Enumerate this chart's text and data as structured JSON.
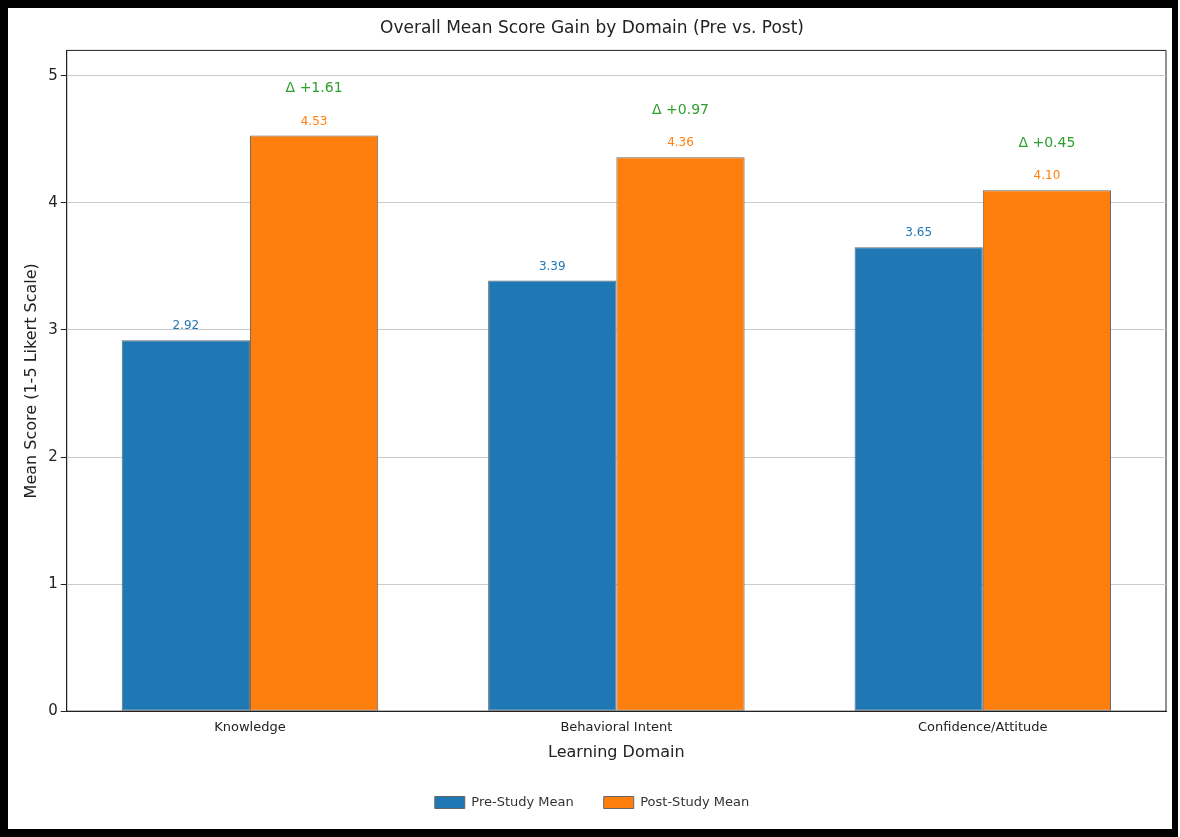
{
  "chart_data": {
    "type": "bar",
    "title": "Overall Mean Score Gain by Domain (Pre vs. Post)",
    "xlabel": "Learning Domain",
    "ylabel": "Mean Score (1-5 Likert Scale)",
    "categories": [
      "Knowledge",
      "Behavioral Intent",
      "Confidence/Attitude"
    ],
    "series": [
      {
        "name": "Pre-Study Mean",
        "color": "#1f77b4",
        "values": [
          2.92,
          3.39,
          3.65
        ],
        "value_labels": [
          "2.92",
          "3.39",
          "3.65"
        ]
      },
      {
        "name": "Post-Study Mean",
        "color": "#ff7f0e",
        "values": [
          4.53,
          4.36,
          4.1
        ],
        "value_labels": [
          "4.53",
          "4.36",
          "4.10"
        ]
      }
    ],
    "ylim": [
      0,
      5.2
    ],
    "yticks": [
      0,
      1,
      2,
      3,
      4,
      5
    ],
    "grid": "y",
    "legend": "bottom",
    "annotations": [
      "Δ +1.61",
      "Δ +0.97",
      "Δ +0.45"
    ]
  }
}
